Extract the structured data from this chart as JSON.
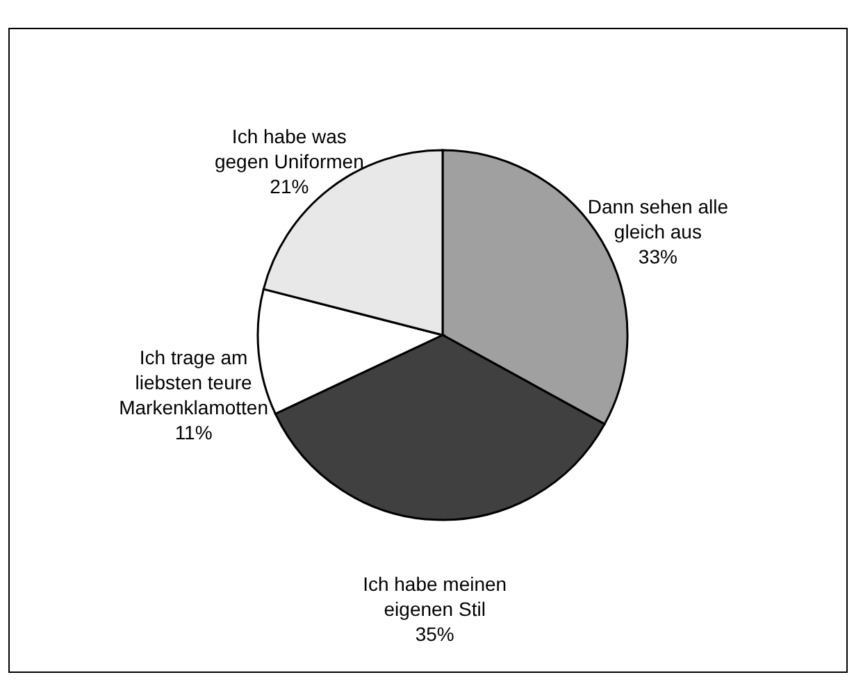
{
  "chart_data": {
    "type": "pie",
    "categories": [
      "Dann sehen alle gleich aus",
      "Ich habe meinen eigenen Stil",
      "Ich trage am liebsten teure Markenklamotten",
      "Ich habe was gegen Uniformen"
    ],
    "values": [
      33,
      35,
      11,
      21
    ],
    "value_labels": [
      "33%",
      "35%",
      "11%",
      "21%"
    ],
    "colors": [
      "#a0a0a0",
      "#404040",
      "#ffffff",
      "#e8e8e8"
    ]
  }
}
